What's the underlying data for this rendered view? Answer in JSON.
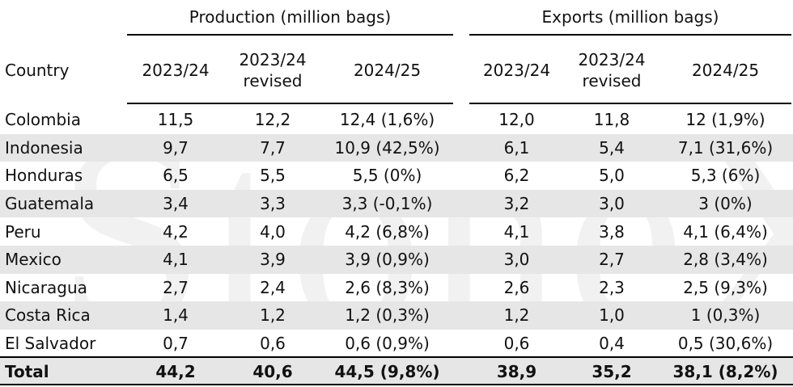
{
  "header": {
    "groups": [
      "Production (million bags)",
      "Exports (million bags)"
    ],
    "country": "Country",
    "columns": [
      "2023/24",
      "2023/24 revised",
      "2024/25",
      "2023/24",
      "2023/24 revised",
      "2024/25"
    ]
  },
  "table": {
    "rows": [
      [
        "Colombia",
        "11,5",
        "12,2",
        "12,4 (1,6%)",
        "12,0",
        "11,8",
        "12 (1,9%)"
      ],
      [
        "Indonesia",
        "9,7",
        "7,7",
        "10,9 (42,5%)",
        "6,1",
        "5,4",
        "7,1 (31,6%)"
      ],
      [
        "Honduras",
        "6,5",
        "5,5",
        "5,5 (0%)",
        "6,2",
        "5,0",
        "5,3 (6%)"
      ],
      [
        "Guatemala",
        "3,4",
        "3,3",
        "3,3 (-0,1%)",
        "3,2",
        "3,0",
        "3 (0%)"
      ],
      [
        "Peru",
        "4,2",
        "4,0",
        "4,2 (6,8%)",
        "4,1",
        "3,8",
        "4,1 (6,4%)"
      ],
      [
        "Mexico",
        "4,1",
        "3,9",
        "3,9 (0,9%)",
        "3,0",
        "2,7",
        "2,8 (3,4%)"
      ],
      [
        "Nicaragua",
        "2,7",
        "2,4",
        "2,6 (8,3%)",
        "2,6",
        "2,3",
        "2,5 (9,3%)"
      ],
      [
        "Costa Rica",
        "1,4",
        "1,2",
        "1,2 (0,3%)",
        "1,2",
        "1,0",
        "1 (0,3%)"
      ],
      [
        "El Salvador",
        "0,7",
        "0,6",
        "0,6 (0,9%)",
        "0,6",
        "0,4",
        "0,5 (30,6%)"
      ]
    ],
    "total": [
      "Total",
      "44,2",
      "40,6",
      "44,5 (9,8%)",
      "38,9",
      "35,2",
      "38,1 (8,2%)"
    ]
  },
  "watermark": "StoneX"
}
